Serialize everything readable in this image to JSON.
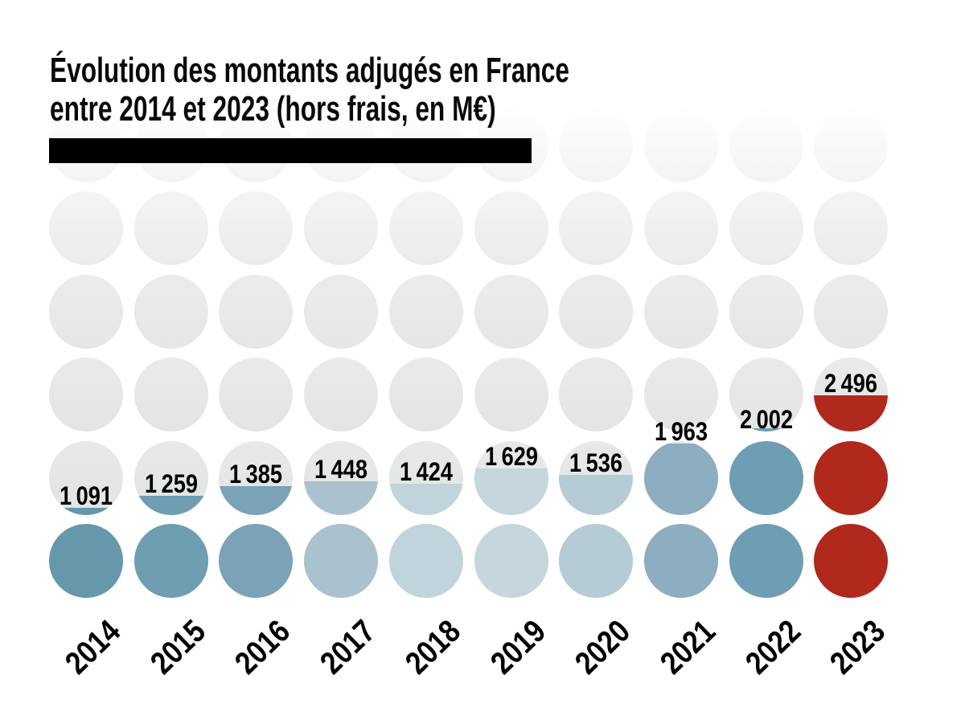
{
  "title": {
    "line1": "Évolution des montants adjugés en France",
    "line2": "entre 2014 et 2023 (hors frais, en M€)"
  },
  "chart_data": {
    "type": "pictogram-circle-columns",
    "title": "Évolution des montants adjugés en France entre 2014 et 2023 (hors frais, en M€)",
    "unit": "M€",
    "circle_unit_value": 1000,
    "rows_of_circles": 6,
    "grid": "10 columns x 6 rows, circles fill from bottom, partial circle shows remainder",
    "categories": [
      "2014",
      "2015",
      "2016",
      "2017",
      "2018",
      "2019",
      "2020",
      "2021",
      "2022",
      "2023"
    ],
    "values": [
      1091,
      1259,
      1385,
      1448,
      1424,
      1629,
      1536,
      1963,
      2002,
      2496
    ],
    "display_values": [
      "1 091",
      "1 259",
      "1 385",
      "1 448",
      "1 424",
      "1 629",
      "1 536",
      "1 963",
      "2 002",
      "2 496"
    ],
    "colors": [
      "#6697ab",
      "#6f9db1",
      "#7aa3b5",
      "#aac2cd",
      "#c2d4db",
      "#c6d6dd",
      "#b5cbd5",
      "#8dadc0",
      "#6d9eb3",
      "#b1281d"
    ],
    "empty_circle_color": "#e4e7e6",
    "highlight_year": "2023",
    "highlight_color": "#b1281d",
    "value_label_color": "#000000",
    "background_color": "#ffffff",
    "legend": "none",
    "ylim": [
      0,
      6000
    ]
  }
}
